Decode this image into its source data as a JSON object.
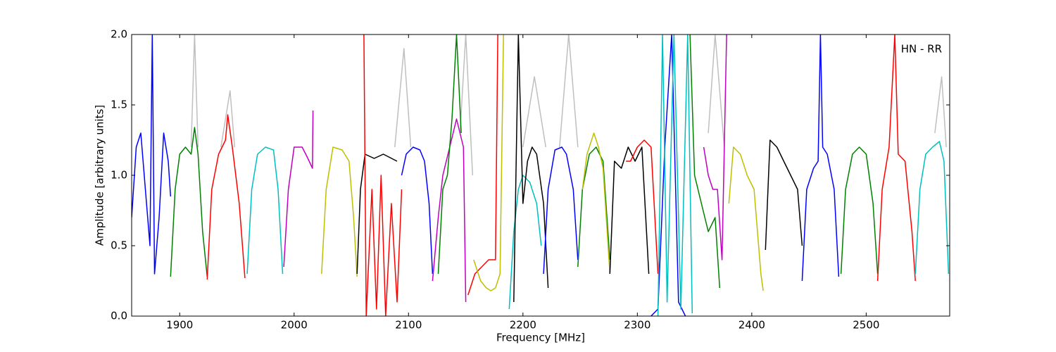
{
  "chart_data": {
    "type": "line",
    "annotation": "HN - RR",
    "x_label": "Frequency [MHz]",
    "y_label": "Amplitude [arbitrary units]",
    "xlim": [
      1858,
      2573
    ],
    "ylim": [
      0,
      2
    ],
    "xticks": [
      1900,
      2000,
      2100,
      2200,
      2300,
      2400,
      2500
    ],
    "yticks": [
      {
        "value": 0,
        "label": "0.0"
      },
      0.5,
      {
        "value": 1,
        "label": "1.0"
      },
      1.5,
      {
        "value": 2,
        "label": "2.0"
      }
    ],
    "series": [
      {
        "color": "#bfbfbf",
        "x": [
          1910,
          1913,
          1916,
          1918,
          1936,
          1944,
          1948,
          1950,
          2088,
          2096,
          2102,
          2104,
          2145,
          2150,
          2156,
          2158,
          2200,
          2210,
          2220,
          2222,
          2232,
          2240,
          2248,
          2250,
          2362,
          2368,
          2376,
          2378,
          2560,
          2566,
          2570
        ],
        "values": [
          1.2,
          2.0,
          1.2,
          null,
          1.2,
          1.6,
          1.2,
          null,
          1.2,
          1.9,
          1.2,
          null,
          1.3,
          2.0,
          1.0,
          null,
          1.2,
          1.7,
          1.2,
          null,
          1.2,
          2.0,
          1.2,
          null,
          1.3,
          2.0,
          1.2,
          null,
          1.3,
          1.7,
          1.2
        ]
      },
      {
        "color": "#0000ff",
        "x": [
          1858,
          1862,
          1866,
          1870,
          1874,
          1876,
          1878,
          1882,
          1886,
          1890,
          1892
        ],
        "values": [
          0.7,
          1.2,
          1.3,
          0.9,
          0.5,
          2.0,
          0.3,
          0.7,
          1.3,
          1.1,
          0.85
        ]
      },
      {
        "color": "#008000",
        "x": [
          1892,
          1896,
          1900,
          1905,
          1910,
          1913,
          1916,
          1920,
          1924
        ],
        "values": [
          0.28,
          0.9,
          1.15,
          1.2,
          1.15,
          1.34,
          1.15,
          0.6,
          0.28
        ]
      },
      {
        "color": "#ff0000",
        "x": [
          1924,
          1928,
          1934,
          1940,
          1942,
          1946,
          1952,
          1957
        ],
        "values": [
          0.26,
          0.9,
          1.15,
          1.25,
          1.43,
          1.2,
          0.8,
          0.27
        ]
      },
      {
        "color": "#00bfbf",
        "x": [
          1959,
          1963,
          1968,
          1975,
          1982,
          1986,
          1990
        ],
        "values": [
          0.3,
          0.9,
          1.15,
          1.2,
          1.18,
          0.9,
          0.3
        ]
      },
      {
        "color": "#bf00bf",
        "x": [
          1991,
          1995,
          2000,
          2007,
          2012,
          2016,
          2016.5
        ],
        "values": [
          0.35,
          0.9,
          1.2,
          1.2,
          1.12,
          1.05,
          1.46
        ]
      },
      {
        "color": "#bfbf00",
        "x": [
          2024,
          2028,
          2034,
          2042,
          2048,
          2052,
          2055
        ],
        "values": [
          0.3,
          0.9,
          1.2,
          1.18,
          1.1,
          0.7,
          0.28
        ]
      },
      {
        "color": "#000000",
        "x": [
          2055,
          2058,
          2062,
          2070,
          2078,
          2090
        ],
        "values": [
          0.3,
          0.9,
          1.15,
          1.12,
          1.15,
          1.1
        ]
      },
      {
        "color": "#ff0000",
        "x": [
          2061,
          2063,
          2068,
          2072,
          2076,
          2080,
          2085,
          2090,
          2094
        ],
        "values": [
          2.0,
          0.0,
          0.9,
          0.05,
          1.0,
          0.0,
          0.8,
          0.1,
          0.9
        ]
      },
      {
        "color": "#0000ff",
        "x": [
          2094,
          2098,
          2104,
          2110,
          2114,
          2118,
          2121
        ],
        "values": [
          1.0,
          1.15,
          1.2,
          1.18,
          1.1,
          0.8,
          0.3
        ]
      },
      {
        "color": "#bf00bf",
        "x": [
          2121,
          2126,
          2130,
          2136,
          2142,
          2148,
          2150
        ],
        "values": [
          0.25,
          0.7,
          1.0,
          1.2,
          1.4,
          1.2,
          0.1
        ]
      },
      {
        "color": "#008000",
        "x": [
          2126,
          2130,
          2134,
          2138,
          2142,
          2146
        ],
        "values": [
          0.3,
          0.9,
          1.0,
          1.4,
          2.0,
          1.3
        ]
      },
      {
        "color": "#ff0000",
        "x": [
          2152,
          2158,
          2164,
          2170,
          2176,
          2178
        ],
        "values": [
          0.15,
          0.3,
          0.35,
          0.4,
          0.4,
          2.0
        ]
      },
      {
        "color": "#bfbf00",
        "x": [
          2157,
          2163,
          2168,
          2172,
          2176,
          2180,
          2183
        ],
        "values": [
          0.4,
          0.25,
          0.2,
          0.18,
          0.2,
          0.3,
          2.0
        ]
      },
      {
        "color": "#00bfbf",
        "x": [
          2188,
          2192,
          2196,
          2200,
          2206,
          2212,
          2216
        ],
        "values": [
          0.05,
          0.6,
          0.9,
          1.0,
          0.95,
          0.8,
          0.5
        ]
      },
      {
        "color": "#000000",
        "x": [
          2192,
          2196,
          2200,
          2204,
          2208,
          2212,
          2218,
          2222
        ],
        "values": [
          0.1,
          2.0,
          0.8,
          1.1,
          1.2,
          1.15,
          0.8,
          0.2
        ]
      },
      {
        "color": "#0000ff",
        "x": [
          2218,
          2222,
          2228,
          2234,
          2238,
          2244,
          2248
        ],
        "values": [
          0.3,
          0.9,
          1.18,
          1.2,
          1.15,
          0.9,
          0.4
        ]
      },
      {
        "color": "#008000",
        "x": [
          2248,
          2252,
          2258,
          2264,
          2270,
          2276
        ],
        "values": [
          0.35,
          0.9,
          1.15,
          1.2,
          1.1,
          0.4
        ]
      },
      {
        "color": "#bfbf00",
        "x": [
          2252,
          2256,
          2262,
          2266,
          2270,
          2276
        ],
        "values": [
          0.9,
          1.15,
          1.3,
          1.2,
          1.05,
          0.3
        ]
      },
      {
        "color": "#000000",
        "x": [
          2276,
          2280,
          2286,
          2292,
          2298,
          2304,
          2310
        ],
        "values": [
          0.3,
          1.1,
          1.05,
          1.2,
          1.1,
          1.2,
          0.3
        ]
      },
      {
        "color": "#ff0000",
        "x": [
          2290,
          2294,
          2300,
          2306,
          2312,
          2318
        ],
        "values": [
          1.1,
          1.1,
          1.2,
          1.25,
          1.2,
          0.3
        ]
      },
      {
        "color": "#0000ff",
        "x": [
          2312,
          2318,
          2324,
          2330,
          2336,
          2342
        ],
        "values": [
          0.0,
          0.05,
          1.2,
          2.0,
          0.1,
          0.0
        ]
      },
      {
        "color": "#00bfbf",
        "x": [
          2318,
          2322,
          2326,
          2332,
          2338,
          2344,
          2348
        ],
        "values": [
          0.0,
          2.0,
          0.1,
          2.0,
          0.05,
          2.0,
          0.02
        ]
      },
      {
        "color": "#008000",
        "x": [
          2346,
          2350,
          2356,
          2362,
          2368,
          2372
        ],
        "values": [
          2.0,
          1.0,
          0.8,
          0.6,
          0.7,
          0.2
        ]
      },
      {
        "color": "#bf00bf",
        "x": [
          2358,
          2362,
          2366,
          2370,
          2374,
          2378
        ],
        "values": [
          1.2,
          1.0,
          0.9,
          0.9,
          0.4,
          2.0
        ]
      },
      {
        "color": "#bfbf00",
        "x": [
          2380,
          2384,
          2390,
          2396,
          2402,
          2408,
          2410
        ],
        "values": [
          0.8,
          1.2,
          1.15,
          1.0,
          0.9,
          0.3,
          0.18
        ]
      },
      {
        "color": "#000000",
        "x": [
          2412,
          2416,
          2422,
          2428,
          2434,
          2440,
          2444
        ],
        "values": [
          0.47,
          1.25,
          1.2,
          1.1,
          1.0,
          0.9,
          0.5
        ]
      },
      {
        "color": "#0000ff",
        "x": [
          2444,
          2448,
          2454,
          2458,
          2460,
          2462,
          2466,
          2472,
          2476
        ],
        "values": [
          0.25,
          0.9,
          1.05,
          1.1,
          2.0,
          1.2,
          1.15,
          0.9,
          0.28
        ]
      },
      {
        "color": "#008000",
        "x": [
          2478,
          2482,
          2488,
          2494,
          2500,
          2506,
          2510
        ],
        "values": [
          0.3,
          0.9,
          1.15,
          1.2,
          1.15,
          0.8,
          0.3
        ]
      },
      {
        "color": "#ff0000",
        "x": [
          2510,
          2514,
          2520,
          2525,
          2528,
          2534,
          2540,
          2543
        ],
        "values": [
          0.25,
          0.9,
          1.2,
          2.0,
          1.15,
          1.1,
          0.6,
          0.25
        ]
      },
      {
        "color": "#00bfbf",
        "x": [
          2543,
          2547,
          2552,
          2558,
          2564,
          2568,
          2572
        ],
        "values": [
          0.3,
          0.9,
          1.15,
          1.2,
          1.24,
          1.1,
          0.3
        ]
      }
    ]
  }
}
